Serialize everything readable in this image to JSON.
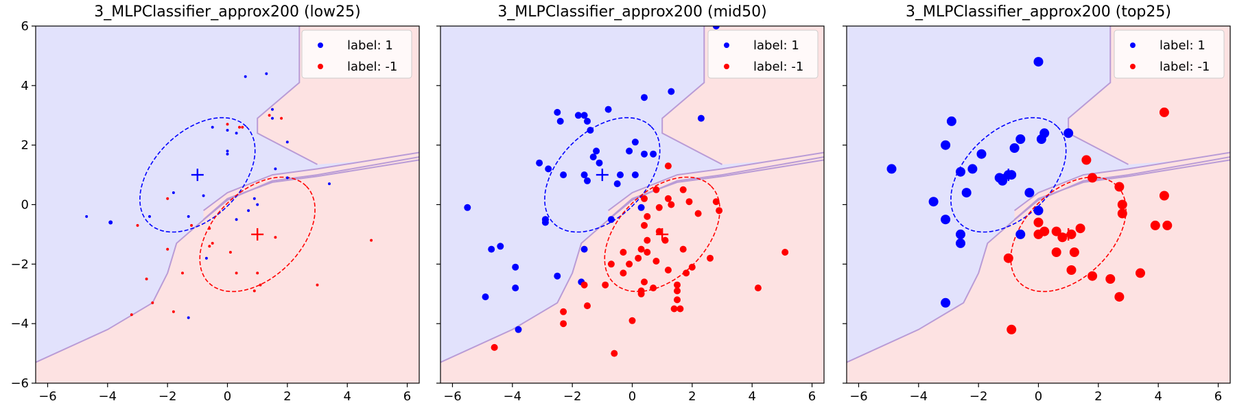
{
  "chart_data": [
    {
      "type": "scatter",
      "title": "3_MLPClassifier_approx200 (low25)",
      "xlim": [
        -6.4,
        6.4
      ],
      "ylim": [
        -6,
        6
      ],
      "xticks": [
        -6,
        -4,
        -2,
        0,
        2,
        4,
        6
      ],
      "yticks": [
        -6,
        -4,
        -2,
        0,
        2,
        4,
        6
      ],
      "xtick_labels": [
        "−6",
        "−4",
        "−2",
        "0",
        "2",
        "4",
        "6"
      ],
      "ytick_labels": [
        "−6",
        "−4",
        "−2",
        "0",
        "2",
        "4",
        "6"
      ],
      "show_ytick_labels": true,
      "legend_position": "top-right",
      "colors": {
        "label_1": "#0000ff",
        "label_neg1": "#ff0000",
        "region_blue": "#e2e2fc",
        "region_red": "#fde2e2"
      },
      "centers": {
        "label_1": [
          -1,
          1
        ],
        "label_neg1": [
          1,
          -1
        ]
      },
      "series": [
        {
          "name": "label: 1",
          "color": "#0000ff",
          "points": [
            [
              0.6,
              4.3
            ],
            [
              1.3,
              4.4
            ],
            [
              1.5,
              3.2
            ],
            [
              1.5,
              2.9
            ],
            [
              -0.5,
              2.6
            ],
            [
              0,
              2.5
            ],
            [
              0.3,
              2.4
            ],
            [
              2,
              2.1
            ],
            [
              0,
              1.8
            ],
            [
              0,
              1.7
            ],
            [
              1.6,
              1.2
            ],
            [
              2,
              0.9
            ],
            [
              3.4,
              0.7
            ],
            [
              -1.8,
              0.4
            ],
            [
              -0.8,
              0.3
            ],
            [
              0.9,
              0.2
            ],
            [
              -2.6,
              -0.4
            ],
            [
              -4.7,
              -0.4
            ],
            [
              -3.9,
              -0.6
            ],
            [
              1,
              0
            ],
            [
              0.7,
              -0.2
            ],
            [
              -1.3,
              -0.4
            ],
            [
              0.3,
              -0.5
            ],
            [
              -0.7,
              -1.8
            ],
            [
              -1.3,
              -3.8
            ]
          ],
          "sizes": [
            2,
            2,
            2,
            2,
            2,
            2,
            2,
            2,
            2,
            2,
            2,
            2,
            2,
            2,
            2,
            2,
            2,
            2,
            3,
            2,
            2,
            2,
            2,
            2,
            2
          ]
        },
        {
          "name": "label: -1",
          "color": "#ff0000",
          "points": [
            [
              0,
              2.7
            ],
            [
              1.8,
              2.9
            ],
            [
              1.4,
              3.0
            ],
            [
              0.4,
              2.6
            ],
            [
              0.5,
              2.6
            ],
            [
              -2,
              0.2
            ],
            [
              -3,
              -0.7
            ],
            [
              -1.2,
              -0.7
            ],
            [
              -0.6,
              -0.8
            ],
            [
              -0.5,
              -1.3
            ],
            [
              -0.6,
              -1.4
            ],
            [
              0.1,
              -1.6
            ],
            [
              -2,
              -1.5
            ],
            [
              1.6,
              -1.1
            ],
            [
              4.8,
              -1.2
            ],
            [
              -1.5,
              -2.3
            ],
            [
              0.3,
              -2.3
            ],
            [
              1,
              -2.3
            ],
            [
              3,
              -2.7
            ],
            [
              1.1,
              -2.7
            ],
            [
              -2.7,
              -2.5
            ],
            [
              -2.5,
              -3.3
            ],
            [
              -1.8,
              -3.6
            ],
            [
              -3.2,
              -3.7
            ],
            [
              0.9,
              -2.9
            ]
          ],
          "sizes": [
            2,
            2,
            2,
            2,
            2,
            2,
            2,
            2,
            2,
            2,
            2,
            2,
            2,
            2,
            2,
            2,
            2,
            2,
            2,
            2,
            2,
            2,
            2,
            2,
            2
          ]
        }
      ]
    },
    {
      "type": "scatter",
      "title": "3_MLPClassifier_approx200 (mid50)",
      "xlim": [
        -6.4,
        6.4
      ],
      "ylim": [
        -6,
        6
      ],
      "xticks": [
        -6,
        -4,
        -2,
        0,
        2,
        4,
        6
      ],
      "yticks": [
        -6,
        -4,
        -2,
        0,
        2,
        4,
        6
      ],
      "xtick_labels": [
        "−6",
        "−4",
        "−2",
        "0",
        "2",
        "4",
        "6"
      ],
      "ytick_labels": [
        "−6",
        "−4",
        "−2",
        "0",
        "2",
        "4",
        "6"
      ],
      "show_ytick_labels": false,
      "legend_position": "top-right",
      "colors": {
        "label_1": "#0000ff",
        "label_neg1": "#ff0000",
        "region_blue": "#e2e2fc",
        "region_red": "#fde2e2"
      },
      "centers": {
        "label_1": [
          -1,
          1
        ],
        "label_neg1": [
          1,
          -1
        ]
      },
      "series": [
        {
          "name": "label: 1",
          "color": "#0000ff",
          "points": [
            [
              2.8,
              6
            ],
            [
              1.3,
              3.8
            ],
            [
              0.4,
              3.6
            ],
            [
              -0.8,
              3.2
            ],
            [
              -2.5,
              3.1
            ],
            [
              -1.8,
              3
            ],
            [
              -1.6,
              3
            ],
            [
              -1.5,
              2.8
            ],
            [
              -2.4,
              2.8
            ],
            [
              -1.4,
              2.5
            ],
            [
              0.1,
              2.1
            ],
            [
              2.3,
              2.9
            ],
            [
              -1.2,
              1.8
            ],
            [
              -1.3,
              1.6
            ],
            [
              -0.1,
              1.8
            ],
            [
              0.4,
              1.7
            ],
            [
              0.7,
              1.7
            ],
            [
              -1.1,
              1.4
            ],
            [
              -3.1,
              1.4
            ],
            [
              -2.8,
              1.2
            ],
            [
              -2.3,
              1
            ],
            [
              -1.6,
              1.0
            ],
            [
              -0.4,
              1
            ],
            [
              0.1,
              1
            ],
            [
              -0.5,
              0.7
            ],
            [
              -1.5,
              0.8
            ],
            [
              -2.9,
              -0.5
            ],
            [
              -0.7,
              -0.5
            ],
            [
              -5.5,
              -0.1
            ],
            [
              0.3,
              -0.1
            ],
            [
              -4.4,
              -1.4
            ],
            [
              -4.7,
              -1.5
            ],
            [
              -1.6,
              -1.5
            ],
            [
              -3.9,
              -2.1
            ],
            [
              -2.5,
              -2.4
            ],
            [
              -1.7,
              -2.6
            ],
            [
              -3.9,
              -2.8
            ],
            [
              -4.9,
              -3.1
            ],
            [
              -3.8,
              -4.2
            ],
            [
              -2.9,
              -0.5
            ],
            [
              -2.9,
              -0.6
            ]
          ],
          "sizes": [
            5,
            5,
            5,
            5,
            5,
            5,
            5,
            5,
            5,
            5,
            5,
            5,
            5,
            5,
            5,
            5,
            5,
            5,
            5,
            5,
            5,
            5,
            5,
            5,
            5,
            5,
            5,
            5,
            5,
            5,
            5,
            5,
            5,
            5,
            5,
            5,
            5,
            5,
            5,
            5,
            5
          ]
        },
        {
          "name": "label: -1",
          "color": "#ff0000",
          "points": [
            [
              1.2,
              1.3
            ],
            [
              0.8,
              0.5
            ],
            [
              1.7,
              0.5
            ],
            [
              1.2,
              0.2
            ],
            [
              0.4,
              0.2
            ],
            [
              1.9,
              0.1
            ],
            [
              2.8,
              0.1
            ],
            [
              1.3,
              0
            ],
            [
              2.9,
              -0.2
            ],
            [
              0.9,
              -0.1
            ],
            [
              0.5,
              -0.4
            ],
            [
              2.2,
              -0.3
            ],
            [
              0.4,
              -0.7
            ],
            [
              0.9,
              -0.9
            ],
            [
              1.1,
              -1.2
            ],
            [
              0.5,
              -1.2
            ],
            [
              0.3,
              -1.5
            ],
            [
              0.5,
              -1.6
            ],
            [
              1.7,
              -1.5
            ],
            [
              -0.3,
              -1.6
            ],
            [
              0.8,
              -1.9
            ],
            [
              0.2,
              -1.8
            ],
            [
              -0.1,
              -2
            ],
            [
              -0.7,
              -2
            ],
            [
              1.2,
              -2.2
            ],
            [
              1.8,
              -2.3
            ],
            [
              2,
              -2.1
            ],
            [
              2.6,
              -1.8
            ],
            [
              -0.3,
              -2.3
            ],
            [
              0.4,
              -2.6
            ],
            [
              1.5,
              -2.7
            ],
            [
              -0.9,
              -2.7
            ],
            [
              0.7,
              -2.8
            ],
            [
              0.3,
              -2.9
            ],
            [
              1.5,
              -2.9
            ],
            [
              -1.6,
              -2.7
            ],
            [
              1.5,
              -3.2
            ],
            [
              1.4,
              -3.5
            ],
            [
              1.6,
              -3.5
            ],
            [
              -1.5,
              -3.4
            ],
            [
              -2.3,
              -3.6
            ],
            [
              -2.3,
              -4.0
            ],
            [
              0,
              -3.9
            ],
            [
              -4.6,
              -4.8
            ],
            [
              -0.6,
              -5
            ],
            [
              4.2,
              -2.8
            ],
            [
              5.1,
              -1.6
            ],
            [
              0.3,
              -3
            ]
          ],
          "sizes": [
            5,
            5,
            5,
            5,
            5,
            5,
            5,
            5,
            5,
            5,
            5,
            5,
            5,
            5,
            5,
            5,
            5,
            5,
            5,
            5,
            5,
            5,
            5,
            5,
            5,
            5,
            5,
            5,
            5,
            5,
            5,
            5,
            5,
            5,
            5,
            5,
            5,
            5,
            5,
            5,
            5,
            5,
            5,
            5,
            5,
            5,
            5,
            5
          ]
        }
      ]
    },
    {
      "type": "scatter",
      "title": "3_MLPClassifier_approx200 (top25)",
      "xlim": [
        -6.4,
        6.4
      ],
      "ylim": [
        -6,
        6
      ],
      "xticks": [
        -6,
        -4,
        -2,
        0,
        2,
        4,
        6
      ],
      "yticks": [
        -6,
        -4,
        -2,
        0,
        2,
        4,
        6
      ],
      "xtick_labels": [
        "−6",
        "−4",
        "−2",
        "0",
        "2",
        "4",
        "6"
      ],
      "ytick_labels": [
        "−6",
        "−4",
        "−2",
        "0",
        "2",
        "4",
        "6"
      ],
      "show_ytick_labels": false,
      "legend_position": "top-right",
      "colors": {
        "label_1": "#0000ff",
        "label_neg1": "#ff0000",
        "region_blue": "#e2e2fc",
        "region_red": "#fde2e2"
      },
      "centers": {
        "label_1": [
          -1,
          1
        ],
        "label_neg1": [
          1,
          -1
        ]
      },
      "series": [
        {
          "name": "label: 1",
          "color": "#0000ff",
          "points": [
            [
              0,
              4.8
            ],
            [
              -2.9,
              2.8
            ],
            [
              0.2,
              2.4
            ],
            [
              1,
              2.4
            ],
            [
              0.1,
              2.2
            ],
            [
              -0.6,
              2.2
            ],
            [
              -3.1,
              2.0
            ],
            [
              -0.8,
              1.9
            ],
            [
              -1.9,
              1.7
            ],
            [
              -4.9,
              1.2
            ],
            [
              -2.2,
              1.2
            ],
            [
              -2.6,
              1.1
            ],
            [
              -1.3,
              0.9
            ],
            [
              -1.2,
              0.8
            ],
            [
              -0.9,
              1
            ],
            [
              -2.4,
              0.4
            ],
            [
              -0.3,
              0.4
            ],
            [
              -3.5,
              0.1
            ],
            [
              0,
              -0.2
            ],
            [
              -3.1,
              -0.5
            ],
            [
              -2.6,
              -1
            ],
            [
              -0.6,
              -1
            ],
            [
              -2.6,
              -1.3
            ],
            [
              -3.1,
              -3.3
            ],
            [
              -1,
              1
            ]
          ],
          "sizes": [
            7,
            7,
            7,
            7,
            7,
            7,
            7,
            7,
            7,
            7,
            7,
            7,
            7,
            7,
            7,
            7,
            7,
            7,
            7,
            7,
            7,
            7,
            7,
            7,
            7
          ]
        },
        {
          "name": "label: -1",
          "color": "#ff0000",
          "points": [
            [
              4.2,
              3.1
            ],
            [
              1.6,
              1.5
            ],
            [
              1.8,
              0.9
            ],
            [
              2.7,
              0.6
            ],
            [
              4.2,
              0.3
            ],
            [
              2.8,
              0
            ],
            [
              2.8,
              -0.3
            ],
            [
              3.9,
              -0.7
            ],
            [
              4.3,
              -0.7
            ],
            [
              0,
              -0.6
            ],
            [
              0.2,
              -0.9
            ],
            [
              0.6,
              -0.9
            ],
            [
              1.4,
              -0.8
            ],
            [
              0.8,
              -1.1
            ],
            [
              1.1,
              -1
            ],
            [
              0.6,
              -1.6
            ],
            [
              -1,
              -1.8
            ],
            [
              1.2,
              -1.6
            ],
            [
              1.1,
              -2.2
            ],
            [
              1.8,
              -2.4
            ],
            [
              2.4,
              -2.5
            ],
            [
              3.4,
              -2.3
            ],
            [
              2.7,
              -3.1
            ],
            [
              -0.9,
              -4.2
            ],
            [
              0,
              -1
            ]
          ],
          "sizes": [
            7,
            7,
            7,
            7,
            7,
            7,
            7,
            7,
            7,
            7,
            7,
            7,
            7,
            7,
            7,
            7,
            7,
            7,
            7,
            7,
            7,
            7,
            7,
            7,
            7
          ]
        }
      ]
    }
  ]
}
